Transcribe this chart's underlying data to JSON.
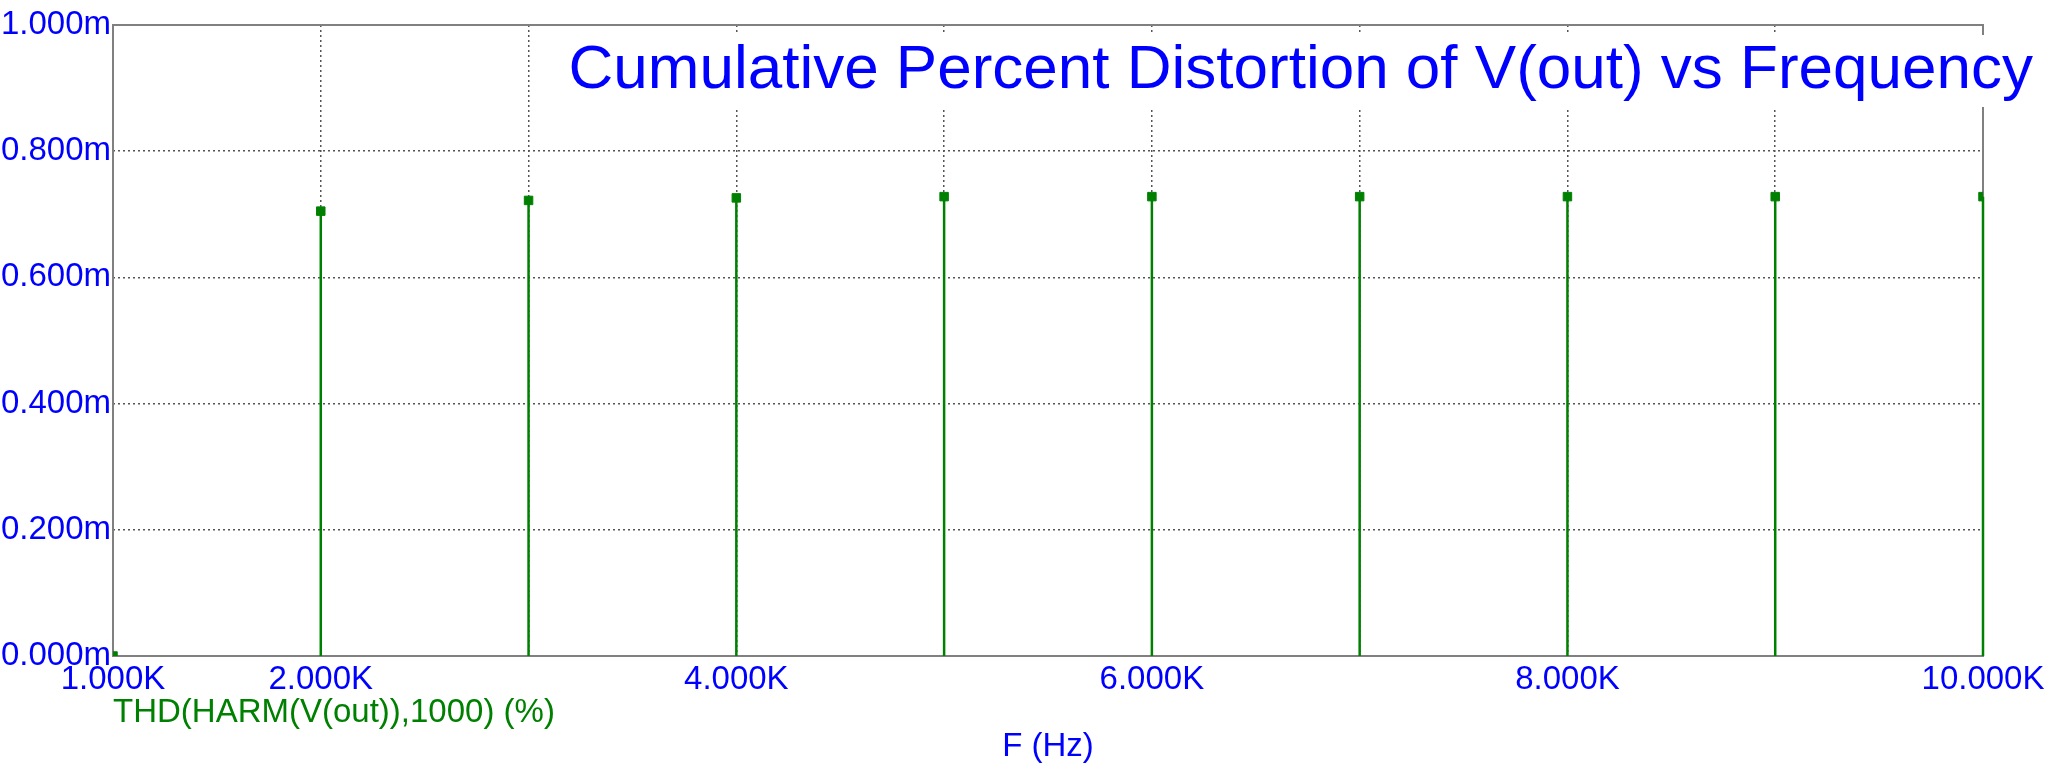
{
  "chart_data": {
    "type": "lollipop",
    "title": "Cumulative Percent Distortion of V(out) vs Frequency",
    "xlabel": "F (Hz)",
    "x": [
      1000,
      2000,
      3000,
      4000,
      5000,
      6000,
      7000,
      8000,
      9000,
      10000
    ],
    "series": [
      {
        "name": "THD(HARM(V(out)),1000) (%)",
        "color": "#008000",
        "values": [
          0,
          0.705,
          0.722,
          0.726,
          0.728,
          0.728,
          0.728,
          0.728,
          0.728,
          0.728
        ]
      }
    ],
    "xlim": [
      1000,
      10000
    ],
    "xticks": [
      {
        "value": 1000,
        "label": "1.000K"
      },
      {
        "value": 2000,
        "label": "2.000K"
      },
      {
        "value": 3000,
        "label": null
      },
      {
        "value": 4000,
        "label": "4.000K"
      },
      {
        "value": 5000,
        "label": null
      },
      {
        "value": 6000,
        "label": "6.000K"
      },
      {
        "value": 7000,
        "label": null
      },
      {
        "value": 8000,
        "label": "8.000K"
      },
      {
        "value": 9000,
        "label": null
      },
      {
        "value": 10000,
        "label": "10.000K"
      }
    ],
    "ylim": [
      0,
      1
    ],
    "yticks": [
      {
        "value": 0,
        "label": "0.000m"
      },
      {
        "value": 0.2,
        "label": "0.200m"
      },
      {
        "value": 0.4,
        "label": "0.400m"
      },
      {
        "value": 0.6,
        "label": "0.600m"
      },
      {
        "value": 0.8,
        "label": "0.800m"
      },
      {
        "value": 1,
        "label": "1.000m"
      }
    ],
    "grid": true,
    "legend": "bottom left",
    "marker": "square"
  }
}
